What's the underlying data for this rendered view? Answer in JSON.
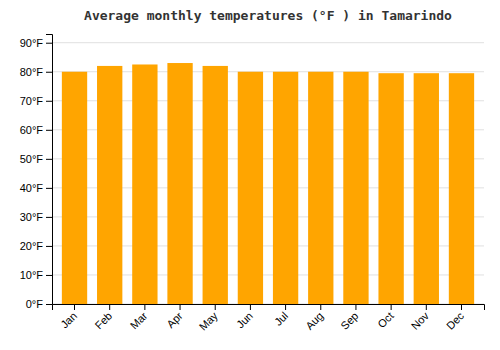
{
  "chart_data": {
    "type": "bar",
    "title": "Average monthly temperatures (°F ) in Tamarindo",
    "categories": [
      "Jan",
      "Feb",
      "Mar",
      "Apr",
      "May",
      "Jun",
      "Jul",
      "Aug",
      "Sep",
      "Oct",
      "Nov",
      "Dec"
    ],
    "values": [
      80,
      82,
      82.5,
      83,
      82,
      80,
      80,
      80,
      80,
      79.5,
      79.5,
      79.5
    ],
    "color": "#FFA500",
    "ylim": [
      0,
      93
    ],
    "yticks": [
      {
        "value": 0,
        "label": "0°F"
      },
      {
        "value": 10,
        "label": "10°F"
      },
      {
        "value": 20,
        "label": "20°F"
      },
      {
        "value": 30,
        "label": "30°F"
      },
      {
        "value": 40,
        "label": "40°F"
      },
      {
        "value": 50,
        "label": "50°F"
      },
      {
        "value": 60,
        "label": "60°F"
      },
      {
        "value": 70,
        "label": "70°F"
      },
      {
        "value": 80,
        "label": "80°F"
      },
      {
        "value": 90,
        "label": "90°F"
      }
    ],
    "grid": true
  }
}
